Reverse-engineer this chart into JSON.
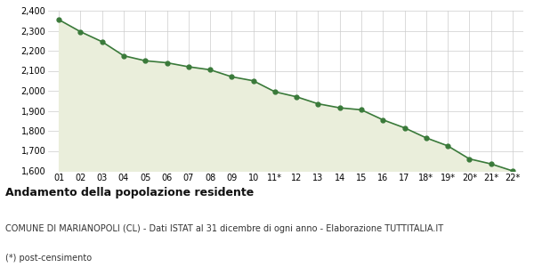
{
  "x_labels": [
    "01",
    "02",
    "03",
    "04",
    "05",
    "06",
    "07",
    "08",
    "09",
    "10",
    "11*",
    "12",
    "13",
    "14",
    "15",
    "16",
    "17",
    "18*",
    "19*",
    "20*",
    "21*",
    "22*"
  ],
  "values": [
    2355,
    2295,
    2245,
    2175,
    2150,
    2140,
    2120,
    2105,
    2070,
    2050,
    1995,
    1970,
    1935,
    1915,
    1905,
    1855,
    1815,
    1765,
    1725,
    1660,
    1635,
    1600
  ],
  "line_color": "#3a7a3a",
  "fill_color": "#eaeedb",
  "marker_color": "#3a7a3a",
  "bg_color": "#ffffff",
  "grid_color": "#cccccc",
  "ylim_min": 1600,
  "ylim_max": 2400,
  "ytick_step": 100,
  "title_main": "Andamento della popolazione residente",
  "title_sub": "COMUNE DI MARIANOPOLI (CL) - Dati ISTAT al 31 dicembre di ogni anno - Elaborazione TUTTITALIA.IT",
  "title_note": "(*) post-censimento",
  "title_main_fontsize": 9,
  "title_sub_fontsize": 7,
  "title_note_fontsize": 7
}
